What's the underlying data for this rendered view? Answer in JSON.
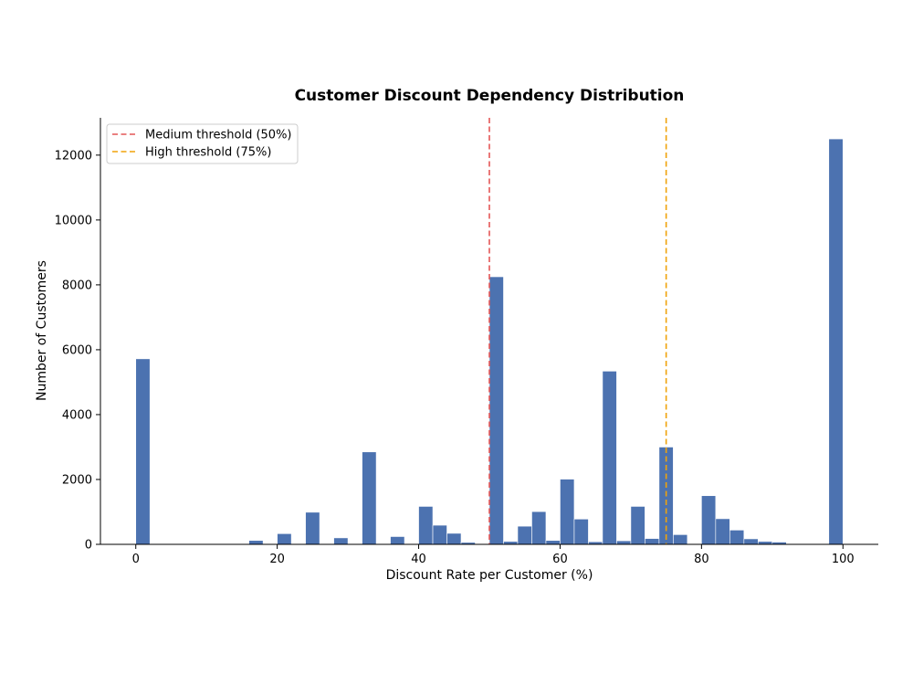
{
  "chart_data": {
    "type": "bar",
    "title": "Customer Discount Dependency Distribution",
    "xlabel": "Discount Rate per Customer (%)",
    "ylabel": "Number of Customers",
    "xlim": [
      -5,
      105
    ],
    "ylim": [
      0,
      13150
    ],
    "bin_width": 2,
    "x_ticks": [
      0,
      20,
      40,
      60,
      80,
      100
    ],
    "y_ticks": [
      0,
      2000,
      4000,
      6000,
      8000,
      10000,
      12000
    ],
    "bins": [
      {
        "start": 0,
        "value": 5720
      },
      {
        "start": 16,
        "value": 120
      },
      {
        "start": 20,
        "value": 330
      },
      {
        "start": 24,
        "value": 990
      },
      {
        "start": 28,
        "value": 200
      },
      {
        "start": 32,
        "value": 2850
      },
      {
        "start": 36,
        "value": 240
      },
      {
        "start": 40,
        "value": 1170
      },
      {
        "start": 42,
        "value": 590
      },
      {
        "start": 44,
        "value": 340
      },
      {
        "start": 46,
        "value": 60
      },
      {
        "start": 50,
        "value": 8250
      },
      {
        "start": 52,
        "value": 90
      },
      {
        "start": 54,
        "value": 560
      },
      {
        "start": 56,
        "value": 1010
      },
      {
        "start": 58,
        "value": 120
      },
      {
        "start": 60,
        "value": 2010
      },
      {
        "start": 62,
        "value": 780
      },
      {
        "start": 64,
        "value": 80
      },
      {
        "start": 66,
        "value": 5340
      },
      {
        "start": 68,
        "value": 110
      },
      {
        "start": 70,
        "value": 1170
      },
      {
        "start": 72,
        "value": 180
      },
      {
        "start": 74,
        "value": 3000
      },
      {
        "start": 76,
        "value": 300
      },
      {
        "start": 80,
        "value": 1500
      },
      {
        "start": 82,
        "value": 790
      },
      {
        "start": 84,
        "value": 440
      },
      {
        "start": 86,
        "value": 170
      },
      {
        "start": 88,
        "value": 90
      },
      {
        "start": 90,
        "value": 70
      },
      {
        "start": 98,
        "value": 12500
      }
    ],
    "bar_color": "#4c72b0",
    "thresholds": [
      {
        "label": "Medium threshold (50%)",
        "x": 50,
        "color": "#e45756"
      },
      {
        "label": "High threshold (75%)",
        "x": 75,
        "color": "#f0a30a"
      }
    ],
    "legend_position": "upper-left",
    "grid": false
  }
}
